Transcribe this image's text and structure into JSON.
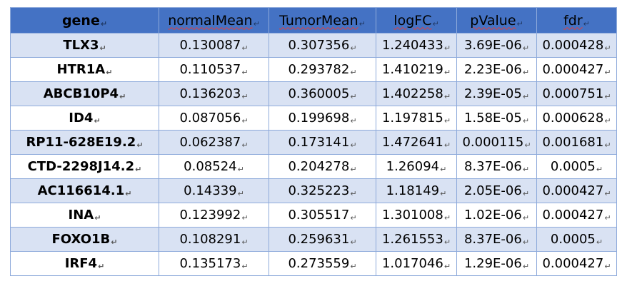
{
  "table": {
    "columns": [
      "gene",
      "normalMean",
      "TumorMean",
      "logFC",
      "pValue",
      "fdr"
    ],
    "rows": [
      [
        "TLX3",
        "0.130087",
        "0.307356",
        "1.240433",
        "3.69E-06",
        "0.000428"
      ],
      [
        "HTR1A",
        "0.110537",
        "0.293782",
        "1.410219",
        "2.23E-06",
        "0.000427"
      ],
      [
        "ABCB10P4",
        "0.136203",
        "0.360005",
        "1.402258",
        "2.39E-05",
        "0.000751"
      ],
      [
        "ID4",
        "0.087056",
        "0.199698",
        "1.197815",
        "1.58E-05",
        "0.000628"
      ],
      [
        "RP11-628E19.2",
        "0.062387",
        "0.173141",
        "1.472641",
        "0.000115",
        "0.001681"
      ],
      [
        "CTD-2298J14.2",
        "0.08524",
        "0.204278",
        "1.26094",
        "8.37E-06",
        "0.0005"
      ],
      [
        "AC116614.1",
        "0.14339",
        "0.325223",
        "1.18149",
        "2.05E-06",
        "0.000427"
      ],
      [
        "INA",
        "0.123992",
        "0.305517",
        "1.301008",
        "1.02E-06",
        "0.000427"
      ],
      [
        "FOXO1B",
        "0.108291",
        "0.259631",
        "1.261553",
        "8.37E-06",
        "0.0005"
      ],
      [
        "IRF4",
        "0.135173",
        "0.273559",
        "1.017046",
        "1.29E-06",
        "0.000427"
      ]
    ]
  },
  "colors": {
    "header_bg": "#4472c4",
    "band_bg": "#d9e2f3",
    "border": "#8eaadb",
    "spellcheck_underline": "#e0403a"
  },
  "icons": {
    "cell_end_mark": "paragraph-return-mark-icon"
  }
}
